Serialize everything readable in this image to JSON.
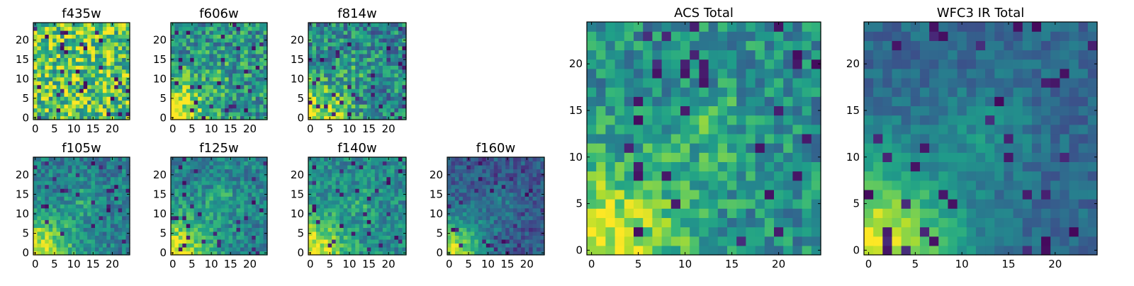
{
  "figure": {
    "colormap": "viridis",
    "image_size": 25,
    "colors": {
      "viridis_low": "#440154",
      "viridis_mid": "#21918c",
      "viridis_high": "#fde725",
      "frame": "#000000"
    }
  },
  "chart_data": [
    {
      "type": "heatmap",
      "title": "f435w",
      "xticks": [
        "0",
        "5",
        "10",
        "15",
        "20"
      ],
      "yticks": [
        "0",
        "5",
        "10",
        "15",
        "20"
      ],
      "xlim": [
        -0.5,
        24.5
      ],
      "ylim": [
        -0.5,
        24.5
      ],
      "grid": false,
      "pattern": {
        "mean": 0.74,
        "noise": 0.34,
        "corner": 0.0,
        "center": 0.05,
        "dark_spots": 0.05
      }
    },
    {
      "type": "heatmap",
      "title": "f606w",
      "xticks": [
        "0",
        "5",
        "10",
        "15",
        "20"
      ],
      "yticks": [
        "0",
        "5",
        "10",
        "15",
        "20"
      ],
      "xlim": [
        -0.5,
        24.5
      ],
      "ylim": [
        -0.5,
        24.5
      ],
      "grid": false,
      "pattern": {
        "mean": 0.52,
        "noise": 0.26,
        "corner": 0.45,
        "center": 0.05,
        "dark_spots": 0.04
      }
    },
    {
      "type": "heatmap",
      "title": "f814w",
      "xticks": [
        "0",
        "5",
        "10",
        "15",
        "20"
      ],
      "yticks": [
        "0",
        "5",
        "10",
        "15",
        "20"
      ],
      "xlim": [
        -0.5,
        24.5
      ],
      "ylim": [
        -0.5,
        24.5
      ],
      "grid": false,
      "pattern": {
        "mean": 0.47,
        "noise": 0.26,
        "corner": 0.5,
        "center": 0.1,
        "dark_spots": 0.06
      }
    },
    {
      "type": "heatmap",
      "title": "f105w",
      "xticks": [
        "0",
        "5",
        "10",
        "15",
        "20"
      ],
      "yticks": [
        "0",
        "5",
        "10",
        "15",
        "20"
      ],
      "xlim": [
        -0.5,
        24.5
      ],
      "ylim": [
        -0.5,
        24.5
      ],
      "grid": false,
      "pattern": {
        "mean": 0.42,
        "noise": 0.17,
        "corner": 0.55,
        "center": 0.18,
        "dark_spots": 0.04
      }
    },
    {
      "type": "heatmap",
      "title": "f125w",
      "xticks": [
        "0",
        "5",
        "10",
        "15",
        "20"
      ],
      "yticks": [
        "0",
        "5",
        "10",
        "15",
        "20"
      ],
      "xlim": [
        -0.5,
        24.5
      ],
      "ylim": [
        -0.5,
        24.5
      ],
      "grid": false,
      "pattern": {
        "mean": 0.45,
        "noise": 0.17,
        "corner": 0.5,
        "center": 0.16,
        "dark_spots": 0.04
      }
    },
    {
      "type": "heatmap",
      "title": "f140w",
      "xticks": [
        "0",
        "5",
        "10",
        "15",
        "20"
      ],
      "yticks": [
        "0",
        "5",
        "10",
        "15",
        "20"
      ],
      "xlim": [
        -0.5,
        24.5
      ],
      "ylim": [
        -0.5,
        24.5
      ],
      "grid": false,
      "pattern": {
        "mean": 0.47,
        "noise": 0.17,
        "corner": 0.5,
        "center": 0.12,
        "dark_spots": 0.04
      }
    },
    {
      "type": "heatmap",
      "title": "f160w",
      "xticks": [
        "0",
        "5",
        "10",
        "15",
        "20"
      ],
      "yticks": [
        "0",
        "5",
        "10",
        "15",
        "20"
      ],
      "xlim": [
        -0.5,
        24.5
      ],
      "ylim": [
        -0.5,
        24.5
      ],
      "grid": false,
      "pattern": {
        "mean": 0.28,
        "noise": 0.13,
        "corner": 0.62,
        "center": 0.12,
        "dark_spots": 0.06
      }
    },
    {
      "type": "heatmap",
      "title": "ACS Total",
      "xticks": [
        "0",
        "5",
        "10",
        "15",
        "20"
      ],
      "yticks": [
        "0",
        "5",
        "10",
        "15",
        "20"
      ],
      "xlim": [
        -0.5,
        24.5
      ],
      "ylim": [
        -0.5,
        24.5
      ],
      "grid": false,
      "pattern": {
        "mean": 0.5,
        "noise": 0.2,
        "corner": 0.5,
        "center": 0.15,
        "dark_spots": 0.06
      }
    },
    {
      "type": "heatmap",
      "title": "WFC3 IR Total",
      "xticks": [
        "0",
        "5",
        "10",
        "15",
        "20"
      ],
      "yticks": [
        "0",
        "5",
        "10",
        "15",
        "20"
      ],
      "xlim": [
        -0.5,
        24.5
      ],
      "ylim": [
        -0.5,
        24.5
      ],
      "grid": false,
      "pattern": {
        "mean": 0.34,
        "noise": 0.1,
        "corner": 0.62,
        "center": 0.15,
        "dark_spots": 0.05
      }
    }
  ]
}
